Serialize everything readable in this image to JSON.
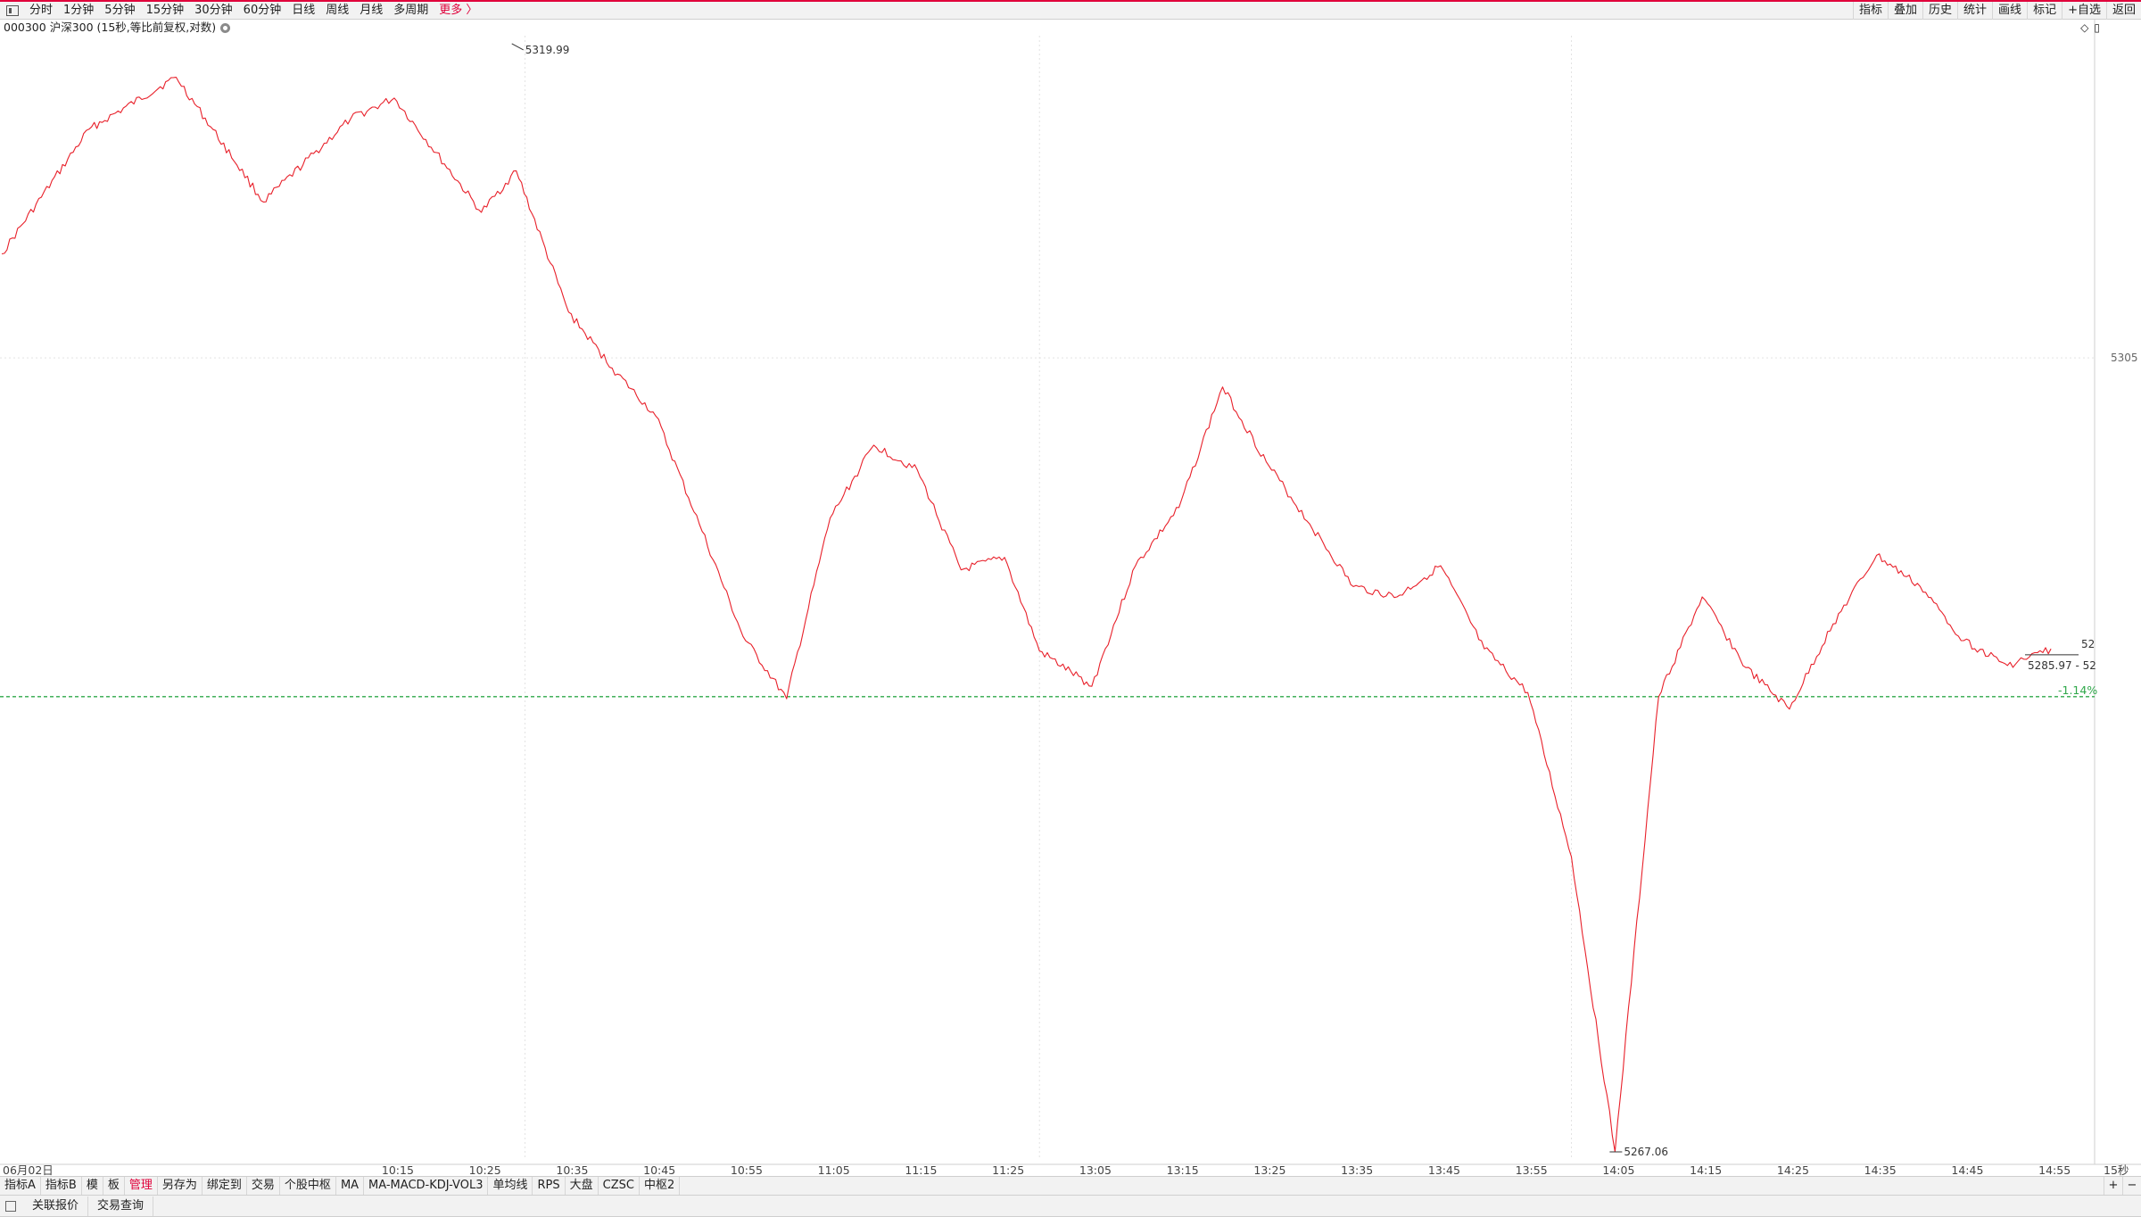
{
  "topbar": {
    "period_tabs": [
      "分时",
      "1分钟",
      "5分钟",
      "15分钟",
      "30分钟",
      "60分钟",
      "日线",
      "周线",
      "月线",
      "多周期",
      "更多 〉"
    ],
    "right_tools": [
      "指标",
      "叠加",
      "历史",
      "统计",
      "画线",
      "标记",
      "+自选",
      "返回"
    ]
  },
  "chart_header": {
    "symbol": "000300 沪深300 (15秒,等比前复权,对数)"
  },
  "corner_icons": [
    "◇",
    "▯"
  ],
  "chart_data": {
    "type": "line",
    "series": [
      {
        "color": "#e8202a",
        "x": [
          "09:30",
          "09:40",
          "09:50",
          "10:00",
          "10:10",
          "10:15",
          "10:25",
          "10:29",
          "10:35",
          "10:40",
          "10:45",
          "10:50",
          "10:55",
          "11:00",
          "11:05",
          "11:10",
          "11:15",
          "11:20",
          "11:25",
          "11:29",
          "13:05",
          "13:10",
          "13:15",
          "13:20",
          "13:25",
          "13:30",
          "13:35",
          "13:40",
          "13:45",
          "13:50",
          "13:55",
          "14:00",
          "14:05",
          "14:10",
          "14:15",
          "14:20",
          "14:25",
          "14:30",
          "14:35",
          "14:40",
          "14:45",
          "14:50",
          "14:55"
        ],
        "values": [
          5310.0,
          5316.0,
          5318.5,
          5312.5,
          5316.5,
          5317.5,
          5312.0,
          5314.0,
          5307.2,
          5304.5,
          5302.2,
          5297.0,
          5291.6,
          5288.6,
          5297.3,
          5300.8,
          5299.6,
          5294.8,
          5295.4,
          5290.9,
          5289.2,
          5295.0,
          5297.8,
          5303.6,
          5300.0,
          5297.0,
          5294.0,
          5293.5,
          5295.0,
          5291.0,
          5288.9,
          5281.0,
          5266.8,
          5288.7,
          5293.5,
          5290.1,
          5288.1,
          5292.2,
          5295.5,
          5294.0,
          5291.4,
          5290.2,
          5291.0
        ]
      }
    ],
    "x_ticks": [
      "06月02日",
      "10:15",
      "10:25",
      "10:35",
      "10:45",
      "10:55",
      "11:05",
      "11:15",
      "11:25",
      "13:05",
      "13:15",
      "13:25",
      "13:35",
      "13:45",
      "13:55",
      "14:05",
      "14:15",
      "14:25",
      "14:35",
      "14:45",
      "14:55"
    ],
    "y_ticks": [
      "5305"
    ],
    "annotations": {
      "high_label": "5319.99",
      "low_label": "5267.06",
      "current_label": "5285.97 - 52",
      "edge_label": "52",
      "pct_line_label": "-1.14%",
      "period_label": "15秒"
    },
    "reference_value": 5288.7,
    "ylim": [
      5266.5,
      5320.5
    ],
    "grid": true,
    "xlabel": "",
    "ylabel": ""
  },
  "bottombar1": {
    "tabs": [
      "指标A",
      "指标B",
      "模",
      "板",
      "管理",
      "另存为",
      "绑定到",
      "交易",
      "个股中枢",
      "MA",
      "MA-MACD-KDJ-VOL3",
      "单均线",
      "RPS",
      "大盘",
      "CZSC",
      "中枢2"
    ],
    "active_tab": "管理",
    "right_buttons": [
      "+",
      "−"
    ]
  },
  "bottombar2": {
    "tabs": [
      "关联报价",
      "交易查询"
    ]
  },
  "colors": {
    "accent": "#e0003a",
    "price_line": "#e8202a",
    "pct_line": "#2fa84a",
    "grid": "#e3e3e3"
  }
}
